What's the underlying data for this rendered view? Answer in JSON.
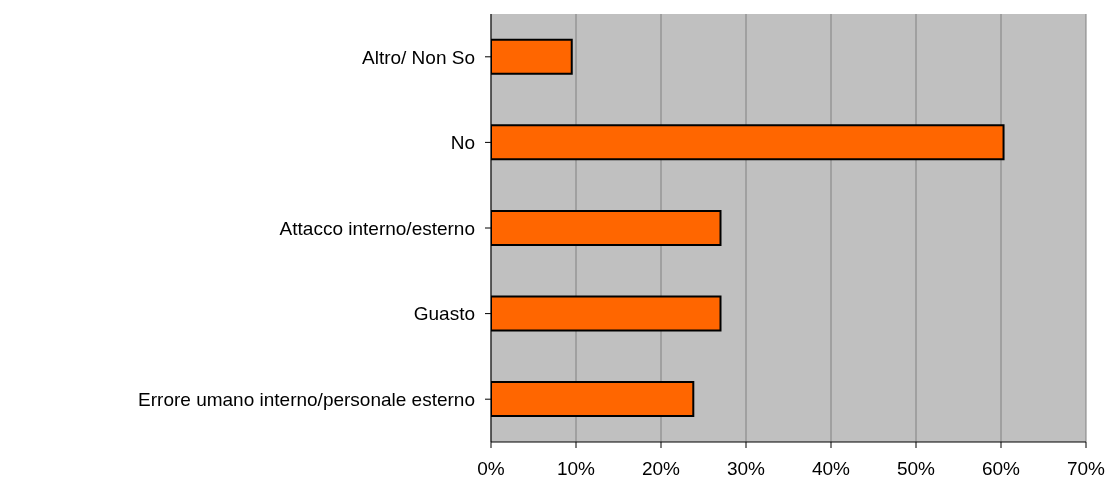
{
  "chart_data": {
    "type": "bar",
    "orientation": "horizontal",
    "categories": [
      "Altro/ Non So",
      "No",
      "Attacco interno/esterno",
      "Guasto",
      "Errore umano interno/personale esterno"
    ],
    "values": [
      9.5,
      60.3,
      27,
      27,
      23.8
    ],
    "color": "#ff6600",
    "xlim": [
      0,
      70
    ],
    "xticks": [
      {
        "value": 0,
        "label": "0%"
      },
      {
        "value": 10,
        "label": "10%"
      },
      {
        "value": 20,
        "label": "20%"
      },
      {
        "value": 30,
        "label": "30%"
      },
      {
        "value": 40,
        "label": "40%"
      },
      {
        "value": 50,
        "label": "50%"
      },
      {
        "value": 60,
        "label": "60%"
      },
      {
        "value": 70,
        "label": "70%"
      }
    ],
    "grid": "x",
    "legend": false
  }
}
